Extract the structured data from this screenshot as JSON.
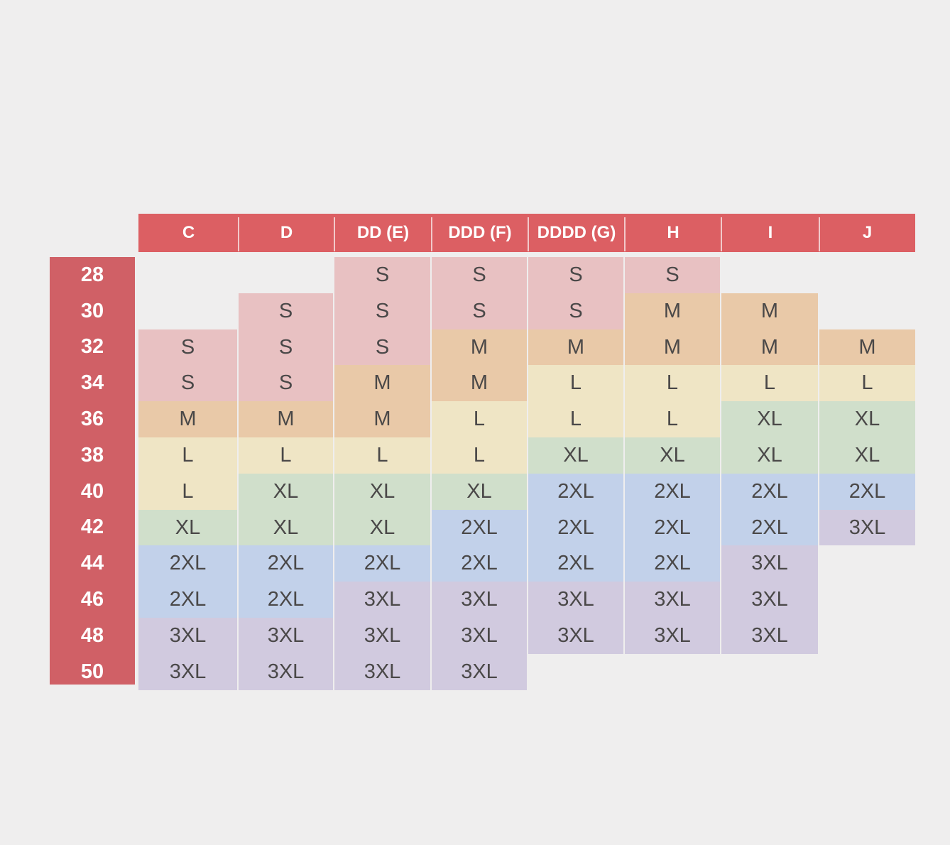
{
  "chart_data": {
    "type": "table",
    "columns": [
      "C",
      "D",
      "DD (E)",
      "DDD (F)",
      "DDDD (G)",
      "H",
      "I",
      "J"
    ],
    "rows": [
      "28",
      "30",
      "32",
      "34",
      "36",
      "38",
      "40",
      "42",
      "44",
      "46",
      "48",
      "50"
    ],
    "cells": [
      [
        "",
        "",
        "S",
        "S",
        "S",
        "S",
        "",
        ""
      ],
      [
        "",
        "S",
        "S",
        "S",
        "S",
        "M",
        "M",
        ""
      ],
      [
        "S",
        "S",
        "S",
        "M",
        "M",
        "M",
        "M",
        "M"
      ],
      [
        "S",
        "S",
        "M",
        "M",
        "L",
        "L",
        "L",
        "L"
      ],
      [
        "M",
        "M",
        "M",
        "L",
        "L",
        "L",
        "XL",
        "XL"
      ],
      [
        "L",
        "L",
        "L",
        "L",
        "XL",
        "XL",
        "XL",
        "XL"
      ],
      [
        "L",
        "XL",
        "XL",
        "XL",
        "2XL",
        "2XL",
        "2XL",
        "2XL"
      ],
      [
        "XL",
        "XL",
        "XL",
        "2XL",
        "2XL",
        "2XL",
        "2XL",
        "3XL"
      ],
      [
        "2XL",
        "2XL",
        "2XL",
        "2XL",
        "2XL",
        "2XL",
        "3XL",
        ""
      ],
      [
        "2XL",
        "2XL",
        "3XL",
        "3XL",
        "3XL",
        "3XL",
        "3XL",
        ""
      ],
      [
        "3XL",
        "3XL",
        "3XL",
        "3XL",
        "3XL",
        "3XL",
        "3XL",
        ""
      ],
      [
        "3XL",
        "3XL",
        "3XL",
        "3XL",
        "",
        "",
        "",
        ""
      ]
    ],
    "size_colors": {
      "S": "#e8c1c2",
      "M": "#e9c9a8",
      "L": "#efe5c5",
      "XL": "#d0dfcb",
      "2XL": "#c2d1ea",
      "3XL": "#d1cadf"
    },
    "header_color": "#dc5f63",
    "row_label_color": "#d06066"
  }
}
